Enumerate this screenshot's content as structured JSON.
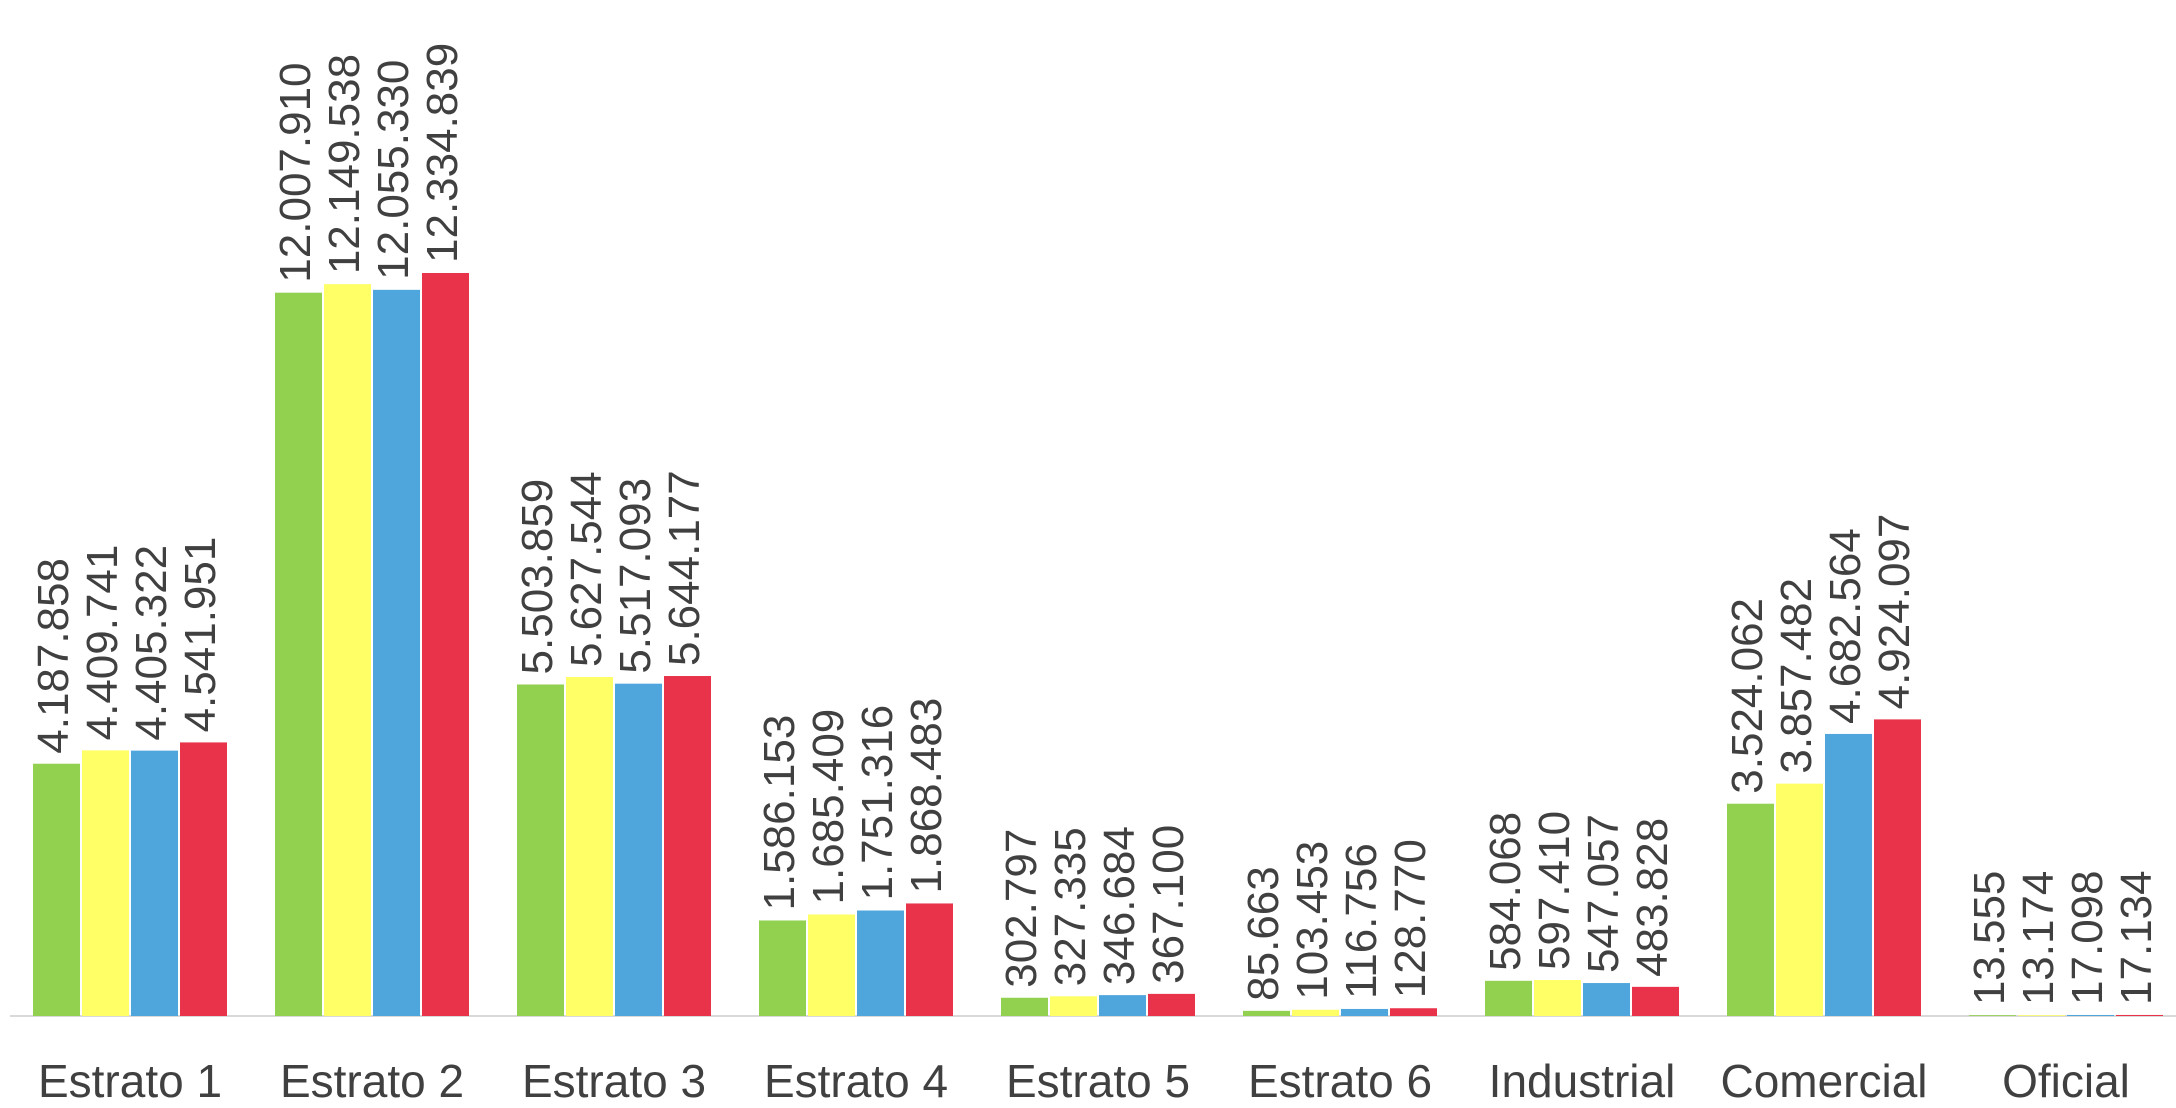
{
  "chart_data": {
    "type": "bar",
    "categories": [
      "Estrato 1",
      "Estrato 2",
      "Estrato 3",
      "Estrato 4",
      "Estrato 5",
      "Estrato 6",
      "Industrial",
      "Comercial",
      "Oficial"
    ],
    "series": [
      {
        "color": "#92d050",
        "values": [
          4187858,
          12007910,
          5503859,
          1586153,
          302797,
          85663,
          584068,
          3524062,
          13555
        ],
        "value_labels": [
          "4.187.858",
          "12.007.910",
          "5.503.859",
          "1.586.153",
          "302.797",
          "85.663",
          "584.068",
          "3.524.062",
          "13.555"
        ]
      },
      {
        "color": "#ffff66",
        "values": [
          4409741,
          12149538,
          5627544,
          1685409,
          327335,
          103453,
          597410,
          3857482,
          13174
        ],
        "value_labels": [
          "4.409.741",
          "12.149.538",
          "5.627.544",
          "1.685.409",
          "327.335",
          "103.453",
          "597.410",
          "3.857.482",
          "13.174"
        ]
      },
      {
        "color": "#4ea6dc",
        "values": [
          4405322,
          12055330,
          5517093,
          1751316,
          346684,
          116756,
          547057,
          4682564,
          17098
        ],
        "value_labels": [
          "4.405.322",
          "12.055.330",
          "5.517.093",
          "1.751.316",
          "346.684",
          "116.756",
          "547.057",
          "4.682.564",
          "17.098"
        ]
      },
      {
        "color": "#e8334a",
        "values": [
          4541951,
          12334839,
          5644177,
          1868483,
          367100,
          128770,
          483828,
          4924097,
          17134
        ],
        "value_labels": [
          "4.541.951",
          "12.334.839",
          "5.644.177",
          "1.868.483",
          "367.100",
          "128.770",
          "483.828",
          "4.924.097",
          "17.134"
        ]
      }
    ]
  }
}
